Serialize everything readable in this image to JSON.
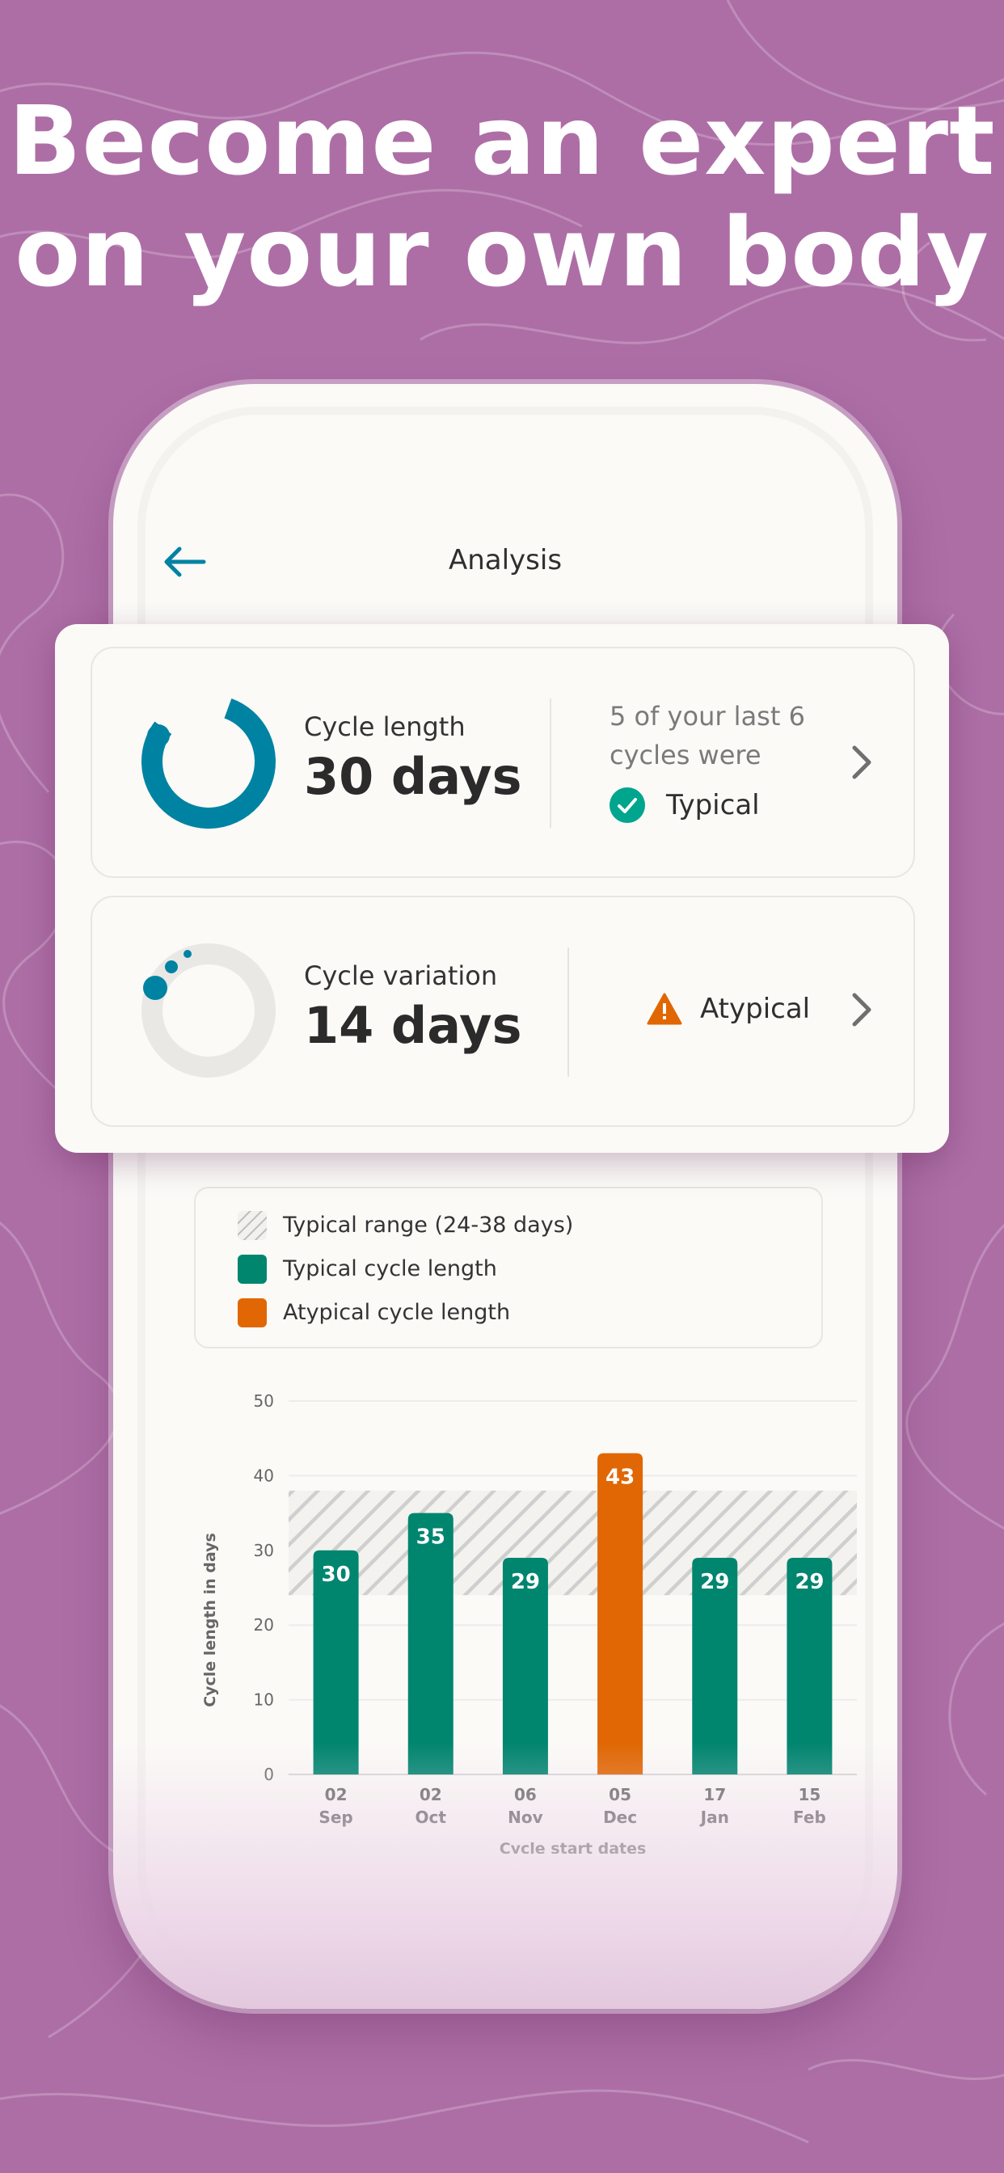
{
  "headline": {
    "line1": "Become an expert",
    "line2": "on your own body"
  },
  "app": {
    "title": "Analysis"
  },
  "cards": {
    "cycle_length": {
      "label": "Cycle length",
      "value": "30 days",
      "summary": "5 of your last 6 cycles were",
      "status": "Typical"
    },
    "cycle_variation": {
      "label": "Cycle variation",
      "value": "14 days",
      "status": "Atypical"
    }
  },
  "legend": {
    "range": "Typical range (24-38 days)",
    "typical": "Typical cycle length",
    "atypical": "Atypical cycle length"
  },
  "colors": {
    "typical": "#00856f",
    "atypical": "#e06703",
    "accent": "#0083a3",
    "background": "#ad6ea6"
  },
  "icons": [
    "back-arrow-icon",
    "check-circle-icon",
    "warning-icon",
    "chevron-right-icon"
  ],
  "chart_data": {
    "type": "bar",
    "categories": [
      "02\nSep",
      "02\nOct",
      "06\nNov",
      "05\nDec",
      "17\nJan",
      "15\nFeb"
    ],
    "values": [
      30,
      35,
      29,
      43,
      29,
      29
    ],
    "status": [
      "typical",
      "typical",
      "typical",
      "atypical",
      "typical",
      "typical"
    ],
    "typical_range": [
      24,
      38
    ],
    "ylim": [
      0,
      50
    ],
    "yticks": [
      0,
      10,
      20,
      30,
      40,
      50
    ],
    "xlabel": "Cycle start dates",
    "ylabel": "Cycle length in days",
    "grid": true
  }
}
